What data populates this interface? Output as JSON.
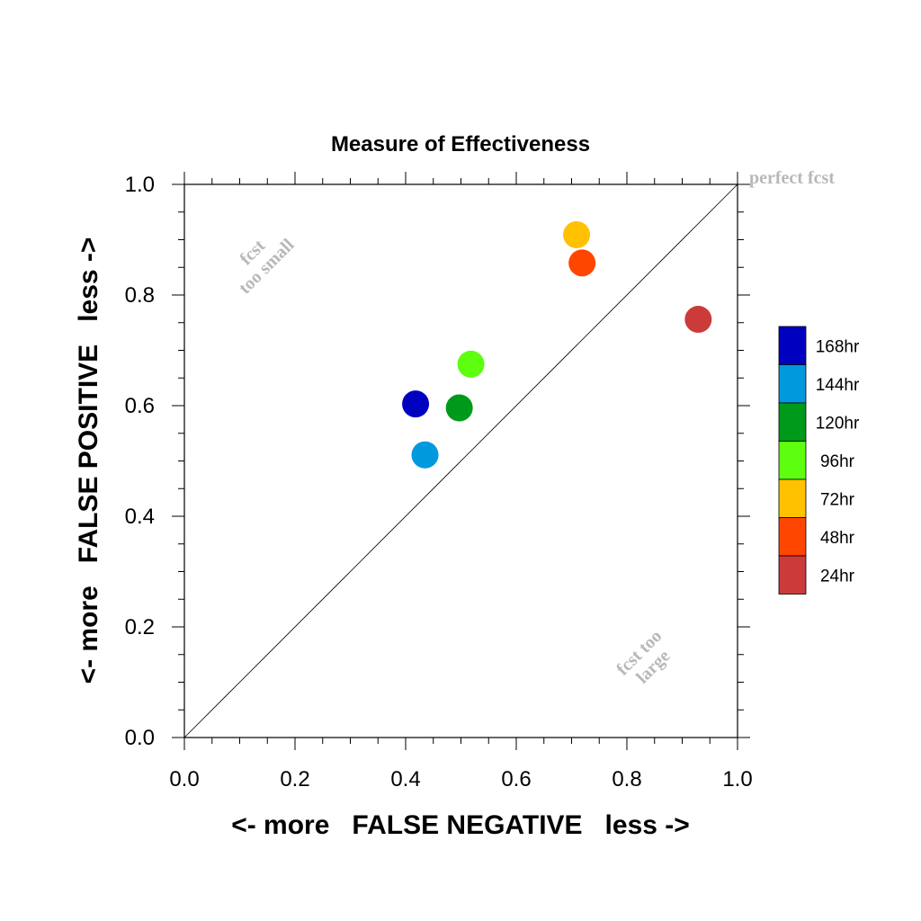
{
  "chart_data": {
    "type": "scatter",
    "title": "Measure of Effectiveness",
    "xlabel": "<- more   FALSE NEGATIVE   less ->",
    "ylabel": "<- more   FALSE POSITIVE   less ->",
    "xlim": [
      0.0,
      1.0
    ],
    "ylim": [
      0.0,
      1.0
    ],
    "x_ticks": [
      "0.0",
      "0.2",
      "0.4",
      "0.6",
      "0.8",
      "1.0"
    ],
    "y_ticks": [
      "0.0",
      "0.2",
      "0.4",
      "0.6",
      "0.8",
      "1.0"
    ],
    "grid": false,
    "legend_position": "right",
    "reference_line": {
      "from": [
        0,
        0
      ],
      "to": [
        1,
        1
      ]
    },
    "annotations": [
      {
        "text": "perfect fcst"
      },
      {
        "lines": [
          "fcst",
          "too small"
        ]
      },
      {
        "lines": [
          "fcst too",
          "large"
        ]
      }
    ],
    "series": [
      {
        "name": "168hr",
        "color": "#0000c0",
        "x": 0.418,
        "y": 0.603
      },
      {
        "name": "144hr",
        "color": "#0099dd",
        "x": 0.435,
        "y": 0.511
      },
      {
        "name": "120hr",
        "color": "#009a1a",
        "x": 0.497,
        "y": 0.596
      },
      {
        "name": "96hr",
        "color": "#5dff0f",
        "x": 0.518,
        "y": 0.675
      },
      {
        "name": "72hr",
        "color": "#ffc100",
        "x": 0.709,
        "y": 0.909
      },
      {
        "name": "48hr",
        "color": "#ff4600",
        "x": 0.719,
        "y": 0.858
      },
      {
        "name": "24hr",
        "color": "#cc3a3a",
        "x": 0.929,
        "y": 0.756
      }
    ]
  }
}
